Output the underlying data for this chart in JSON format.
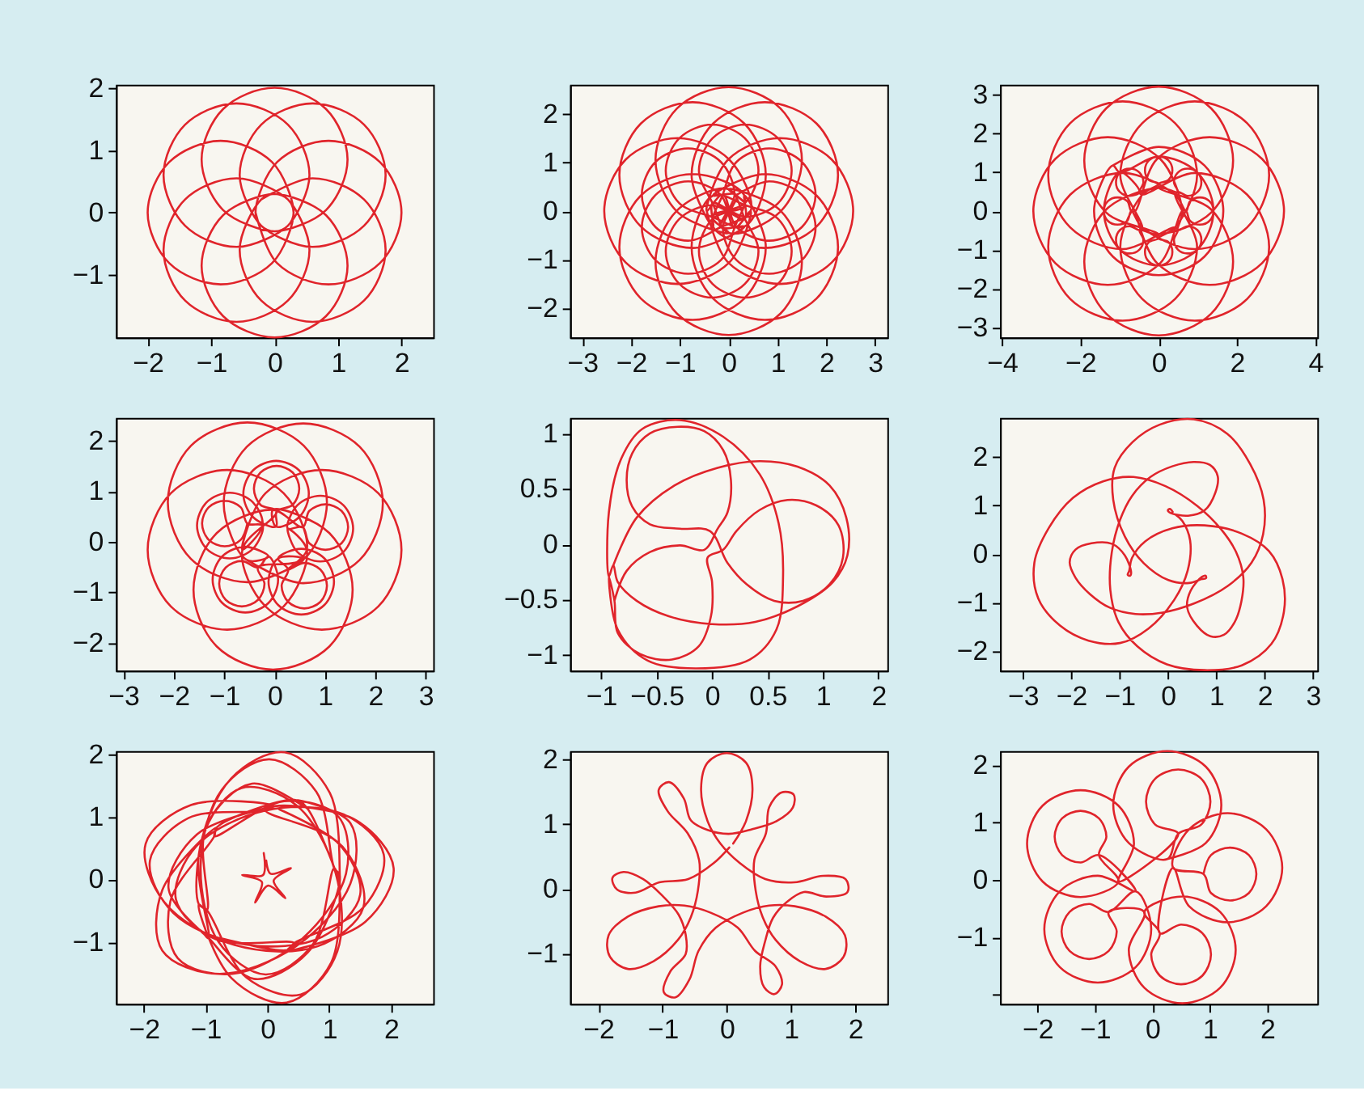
{
  "chart_data": [
    {
      "type": "line",
      "xlim": [
        -2.5,
        2.5
      ],
      "ylim": [
        -2.0,
        2.05
      ],
      "xticks": [
        -2,
        -1,
        0,
        1,
        2
      ],
      "yticks": [
        -1,
        0,
        1,
        2
      ],
      "series": [
        {
          "color": "#e0242b",
          "x": [
            -0.3,
            0.04,
            0.85,
            1.66,
            2.0,
            1.66,
            0.85,
            0.04,
            -0.3,
            -0.21,
            0.6,
            1.41,
            1.75,
            1.41,
            0.6,
            -0.21,
            -0.55,
            -0.21,
            0,
            0.81,
            1.15,
            0.81,
            0,
            -0.81,
            -1.15,
            -0.81,
            0,
            0.21,
            0.55,
            0.21,
            -0.6,
            -1.41,
            -1.75,
            -1.41,
            -0.6,
            0.21,
            0.3,
            -0.04,
            -0.85,
            -1.66,
            -2.0,
            -1.66,
            -0.85,
            -0.04,
            0.3,
            0.21,
            -0.6,
            -1.41,
            -1.75,
            -1.41,
            -0.6,
            0.21,
            0.55,
            0.21,
            0,
            -0.81,
            -1.15,
            -0.81,
            0,
            0.81,
            1.15,
            0.81,
            0,
            -0.21,
            -0.55,
            -0.21,
            0.6,
            1.41,
            1.75,
            1.41,
            0.6,
            -0.21
          ],
          "values": [
            0,
            -0.81,
            -1.15,
            -0.81,
            0,
            0.81,
            1.15,
            0.81,
            0,
            -0.21,
            -0.55,
            -0.21,
            0.6,
            1.41,
            1.75,
            1.41,
            0.6,
            -0.21,
            -0.3,
            0.04,
            0.85,
            1.66,
            2.0,
            1.66,
            0.85,
            0.04,
            -0.3,
            -0.21,
            0.6,
            1.41,
            1.75,
            1.41,
            0.6,
            -0.21,
            -0.55,
            -0.21,
            0,
            0.81,
            1.15,
            0.81,
            0,
            -0.81,
            -1.15,
            -0.81,
            0,
            0.21,
            0.55,
            0.21,
            -0.6,
            -1.41,
            -1.75,
            -1.41,
            -0.6,
            0.21,
            0.3,
            -0.04,
            -0.85,
            -1.66,
            -2.0,
            -1.66,
            -0.85,
            -0.04,
            0.3,
            0.21,
            -0.6,
            -1.41,
            -1.75,
            -1.41,
            -0.6,
            0.21,
            0.55,
            0.21
          ]
        }
      ]
    },
    {
      "type": "line",
      "xlim": [
        -3.25,
        3.25
      ],
      "ylim": [
        -2.6,
        2.6
      ],
      "xticks": [
        -3,
        -2,
        -1,
        0,
        1,
        2,
        3
      ],
      "yticks": [
        -2,
        -1,
        0,
        1,
        2
      ],
      "series": [
        {
          "color": "#e0242b",
          "x": [
            -0.45,
            -0.01,
            1.05,
            2.11,
            2.55,
            2.11,
            1.05,
            -0.01,
            -0.45,
            -0.12,
            0.16,
            0.83,
            1.5,
            1.78,
            1.5,
            0.83,
            0.16,
            -0.12,
            -0.32,
            0.74,
            1.8,
            2.24,
            1.8,
            0.74,
            -0.32,
            -0.76,
            -0.32,
            -0.33,
            0.34,
            1.01,
            1.29,
            1.01,
            0.34,
            -0.33,
            -0.61,
            -0.33,
            0,
            1.06,
            1.5,
            1.06,
            0,
            -1.06,
            -1.5,
            -1.06,
            0,
            -0.34,
            0.33,
            0.61,
            0.33,
            -0.34,
            -1.01,
            -1.29,
            -1.01,
            -0.34,
            0.32,
            0.76,
            0.32,
            -0.74,
            -1.8,
            -2.24,
            -1.8,
            -0.74,
            0.32,
            -0.16,
            0.12,
            -0.16,
            -0.83,
            -1.5,
            -1.78,
            -1.5,
            -0.83,
            -0.16,
            0.45,
            0.01,
            -1.05,
            -2.11,
            -2.55,
            -2.11,
            -1.05,
            0.01,
            0.45,
            0.12,
            -0.16,
            -0.83,
            -1.5,
            -1.78,
            -1.5,
            -0.83,
            -0.16,
            0.12,
            0.32,
            -0.74,
            -1.8,
            -2.24,
            -1.8,
            -0.74,
            0.32,
            0.76,
            0.32,
            0.33,
            -0.34,
            -1.01,
            -1.29,
            -1.01,
            -0.34,
            0.33,
            0.61,
            0.33,
            0,
            -1.06,
            -1.5,
            -1.06,
            0,
            1.06,
            1.5,
            1.06,
            0,
            0.34,
            -0.33,
            -0.61,
            -0.33,
            0.34,
            1.01,
            1.29,
            1.01,
            0.34,
            -0.32,
            -0.76,
            -0.32,
            0.74,
            1.8,
            2.24,
            1.8,
            0.74,
            -0.32,
            0.16,
            -0.12,
            0.16,
            0.83,
            1.5,
            1.78,
            1.5,
            0.83,
            0.16
          ],
          "values": [
            0,
            -1.06,
            -1.5,
            -1.06,
            0,
            1.06,
            1.5,
            1.06,
            0,
            0.34,
            -0.33,
            -0.61,
            -0.33,
            0.34,
            1.01,
            1.29,
            1.01,
            0.34,
            -0.32,
            -0.76,
            -0.32,
            0.74,
            1.8,
            2.24,
            1.8,
            0.74,
            -0.32,
            0.16,
            -0.12,
            0.16,
            0.83,
            1.5,
            1.78,
            1.5,
            0.83,
            0.16,
            -0.45,
            -0.01,
            1.05,
            2.11,
            2.55,
            2.11,
            1.05,
            -0.01,
            -0.45,
            -0.12,
            0.16,
            0.83,
            1.5,
            1.78,
            1.5,
            0.83,
            0.16,
            -0.12,
            -0.32,
            0.74,
            1.8,
            2.24,
            1.8,
            0.74,
            -0.32,
            -0.76,
            -0.32,
            -0.33,
            0.34,
            1.01,
            1.29,
            1.01,
            0.34,
            -0.33,
            -0.61,
            -0.33,
            0,
            1.06,
            1.5,
            1.06,
            0,
            -1.06,
            -1.5,
            -1.06,
            0,
            -0.34,
            0.33,
            0.61,
            0.33,
            -0.34,
            -1.01,
            -1.29,
            -1.01,
            -0.34,
            0.32,
            0.76,
            0.32,
            -0.74,
            -1.8,
            -2.24,
            -1.8,
            -0.74,
            0.32,
            -0.16,
            0.12,
            -0.16,
            -0.83,
            -1.5,
            -1.78,
            -1.5,
            -0.83,
            -0.16,
            0.45,
            0.01,
            -1.05,
            -2.11,
            -2.55,
            -2.11,
            -1.05,
            0.01,
            0.45,
            0.12,
            -0.16,
            -0.83,
            -1.5,
            -1.78,
            -1.5,
            -0.83,
            -0.16,
            0.12,
            0.32,
            -0.74,
            -1.8,
            -2.24,
            -1.8,
            -0.74,
            0.32,
            0.76,
            0.32,
            0.33,
            -0.34,
            -1.01,
            -1.29,
            -1.01,
            -0.34,
            0.33,
            0.61,
            0.33
          ]
        }
      ]
    },
    {
      "type": "line",
      "xlim": [
        -4.05,
        4.05
      ],
      "ylim": [
        -3.25,
        3.25
      ],
      "xticks": [
        -4,
        -2,
        0,
        2,
        4
      ],
      "yticks": [
        -3,
        -2,
        -1,
        0,
        1,
        2,
        3
      ],
      "series": [
        {
          "color": "#e0242b",
          "x": [
            -0.6,
            -0.04,
            1.3,
            2.64,
            3.2,
            2.64,
            1.3,
            -0.04,
            -0.6,
            -0.7,
            -0.8,
            -1.05,
            -1.3,
            -1.4,
            -1.3,
            -1.05,
            -0.8,
            -0.7,
            -0.42,
            0.92,
            2.26,
            2.82,
            2.26,
            0.92,
            -0.42,
            -0.98,
            -0.42,
            -0.49,
            -0.74,
            -0.99,
            -1.09,
            -0.99,
            -0.74,
            -0.49,
            -0.39,
            -0.49,
            0,
            1.34,
            1.9,
            1.34,
            0,
            -1.34,
            -1.9,
            -1.34,
            0,
            0,
            -0.25,
            -0.35,
            -0.25,
            0,
            0.25,
            0.35,
            0.25,
            0,
            0.42,
            0.98,
            0.42,
            -0.92,
            -2.26,
            -2.82,
            -2.26,
            -0.92,
            0.42,
            0.49,
            0.39,
            0.49,
            0.74,
            0.99,
            1.09,
            0.99,
            0.74,
            0.49,
            0.6,
            0.04,
            -1.3,
            -2.64,
            -3.2,
            -2.64,
            -1.3,
            0.04,
            0.6,
            0.7,
            0.8,
            1.05,
            1.3,
            1.4,
            1.3,
            1.05,
            0.8,
            0.7,
            0.42,
            -0.92,
            -2.26,
            -2.82,
            -2.26,
            -0.92,
            0.42,
            0.98,
            0.42,
            0.49,
            0.74,
            0.99,
            1.09,
            0.99,
            0.74,
            0.49,
            0.39,
            0.49,
            0,
            -1.34,
            -1.9,
            -1.34,
            0,
            1.34,
            1.9,
            1.34,
            0,
            0,
            0.25,
            0.35,
            0.25,
            0,
            -0.25,
            -0.35,
            -0.25,
            0,
            -0.42,
            -0.98,
            -0.42,
            0.92,
            2.26,
            2.82,
            2.26,
            0.92,
            -0.42,
            -0.49,
            -0.39,
            -0.49,
            -0.74,
            -0.99,
            -1.09,
            -0.99,
            -0.74,
            -0.49,
            -0.99,
            -1.4,
            -0.99,
            0,
            0.99,
            1.4,
            0.99,
            0,
            -0.99,
            -1.17,
            -1.65,
            -1.17,
            0,
            1.17,
            1.65,
            1.17,
            0,
            -1.17
          ],
          "values": [
            0,
            -1.34,
            -1.9,
            -1.34,
            0,
            1.34,
            1.9,
            1.34,
            0,
            0,
            0.25,
            0.35,
            0.25,
            0,
            -0.25,
            -0.35,
            -0.25,
            0,
            -0.42,
            -0.98,
            -0.42,
            0.92,
            2.26,
            2.82,
            2.26,
            0.92,
            -0.42,
            -0.49,
            -0.39,
            -0.49,
            -0.74,
            -0.99,
            -1.09,
            -0.99,
            -0.74,
            -0.49,
            -0.6,
            -0.04,
            1.3,
            2.64,
            3.2,
            2.64,
            1.3,
            -0.04,
            -0.6,
            -0.7,
            -0.8,
            -1.05,
            -1.3,
            -1.4,
            -1.3,
            -1.05,
            -0.8,
            -0.7,
            -0.42,
            0.92,
            2.26,
            2.82,
            2.26,
            0.92,
            -0.42,
            -0.98,
            -0.42,
            -0.49,
            -0.74,
            -0.99,
            -1.09,
            -0.99,
            -0.74,
            -0.49,
            -0.39,
            -0.49,
            0,
            1.34,
            1.9,
            1.34,
            0,
            -1.34,
            -1.9,
            -1.34,
            0,
            0,
            -0.25,
            -0.35,
            -0.25,
            0,
            0.25,
            0.35,
            0.25,
            0,
            0.42,
            0.98,
            0.42,
            -0.92,
            -2.26,
            -2.82,
            -2.26,
            -0.92,
            0.42,
            0.49,
            0.39,
            0.49,
            0.74,
            0.99,
            1.09,
            0.99,
            0.74,
            0.49,
            0.6,
            0.04,
            -1.3,
            -2.64,
            -3.2,
            -2.64,
            -1.3,
            0.04,
            0.6,
            0.7,
            0.8,
            1.05,
            1.3,
            1.4,
            1.3,
            1.05,
            0.8,
            0.7,
            0.42,
            -0.92,
            -2.26,
            -2.82,
            -2.26,
            -0.92,
            0.42,
            0.98,
            0.42,
            0.49,
            0.74,
            0.99,
            1.09,
            0.99,
            0.74,
            0.49,
            0.39,
            0.49,
            0.99,
            0,
            -0.99,
            -1.4,
            -0.99,
            0,
            0.99,
            1.4,
            0.99,
            1.17,
            0,
            -1.17,
            -1.65,
            -1.17,
            0,
            1.17,
            1.65,
            1.17
          ]
        }
      ]
    },
    {
      "type": "line",
      "xlim": [
        -3.15,
        3.15
      ],
      "ylim": [
        -2.55,
        2.45
      ],
      "xticks": [
        -3,
        -2,
        -1,
        0,
        1,
        2,
        3
      ],
      "yticks": [
        -2,
        -1,
        0,
        1,
        2
      ],
      "series": [
        {
          "color": "#e0242b",
          "x": [
            -0.55,
            0.57,
            1.69,
            2.15,
            1.69,
            0.57,
            -0.55,
            -1.01,
            -0.55,
            -0.12,
            -0.58,
            -1.04,
            -1.23,
            -1.04,
            -0.58,
            -0.12,
            0.07,
            -0.12,
            -0.33,
            -0.65,
            -0.97,
            -1.1,
            -0.97,
            -0.65,
            -0.33,
            -0.2,
            -0.33,
            0.58,
            1.04,
            0.58,
            -0.54,
            -1.66,
            -2.12,
            -1.66,
            -0.54,
            0.58,
            0.07,
            -0.12,
            0.07,
            0.53,
            0.99,
            1.18,
            0.99,
            0.53,
            0.07,
            0.27,
            0.14,
            0.27,
            0.59,
            0.91,
            1.04,
            0.91,
            0.59,
            0.27,
            0.64,
            0.18,
            -0.94,
            -2.06,
            -2.52,
            -2.06,
            -0.94,
            0.18,
            0.64,
            0.26,
            0.45,
            0.91,
            1.37,
            1.56,
            1.37,
            0.91,
            0.45,
            0.26,
            0.56,
            0.69,
            1.01,
            1.33,
            1.46,
            1.33,
            1.01,
            0.69,
            0.56,
            -0.03,
            -1.15,
            -1.61,
            -1.15,
            -0.03,
            1.09,
            1.55,
            1.09,
            -0.03,
            0.03,
            0.49,
            0.68,
            0.49,
            0.03,
            -0.43,
            -0.62,
            -0.43,
            0.03,
            0.04,
            0.36,
            0.49,
            0.36,
            0.04,
            -0.28,
            -0.41,
            -0.28,
            0.04,
            -0.64,
            -0.18,
            0.94,
            2.06,
            2.52,
            2.06,
            0.94,
            -0.18,
            -0.64,
            -0.24,
            -0.43,
            -0.89,
            -1.35,
            -1.54,
            -1.35,
            -0.89,
            -0.43,
            -0.24,
            -0.54,
            -0.67,
            -0.99,
            -1.31,
            -1.44,
            -1.31,
            -0.99,
            -0.67,
            -0.54
          ],
          "values": [
            -0.36,
            -0.82,
            -0.36,
            0.76,
            1.88,
            2.34,
            1.88,
            0.76,
            -0.36,
            -0.29,
            -0.1,
            -0.29,
            -0.75,
            -1.21,
            -1.4,
            -1.21,
            -0.75,
            -0.29,
            -0.51,
            -0.38,
            -0.51,
            -0.83,
            -1.15,
            -1.28,
            -1.15,
            -0.83,
            -0.51,
            -0.34,
            0.78,
            1.9,
            2.36,
            1.9,
            0.78,
            -0.34,
            -0.8,
            -0.34,
            -0.33,
            -0.79,
            -1.25,
            -1.44,
            -1.25,
            -0.79,
            -0.33,
            -0.14,
            -0.33,
            -0.55,
            -0.87,
            -1.19,
            -1.32,
            -1.19,
            -0.87,
            -0.55,
            -0.42,
            -0.55,
            -0.16,
            0.96,
            1.42,
            0.96,
            -0.16,
            -1.28,
            -1.74,
            -1.28,
            -0.16,
            0.26,
            -0.2,
            -0.39,
            -0.2,
            0.26,
            0.72,
            0.91,
            0.72,
            0.26,
            0.29,
            -0.03,
            -0.16,
            -0.03,
            0.29,
            0.61,
            0.74,
            0.61,
            0.29,
            0.63,
            0.17,
            -0.95,
            -2.07,
            -2.53,
            -2.07,
            -0.95,
            0.17,
            0.63,
            0.3,
            0.49,
            0.95,
            1.41,
            1.6,
            1.41,
            0.95,
            0.49,
            0.3,
            0.6,
            0.73,
            1.05,
            1.37,
            1.5,
            1.37,
            1.05,
            0.73,
            0.6,
            -0.16,
            -1.28,
            -1.74,
            -1.28,
            -0.16,
            0.96,
            1.42,
            0.96,
            -0.16,
            0.32,
            0.78,
            0.97,
            0.78,
            0.32,
            -0.14,
            -0.33,
            -0.14,
            0.32,
            0.36,
            0.68,
            0.81,
            0.68,
            0.36,
            0.04,
            -0.09,
            0.04,
            0.36
          ]
        }
      ]
    },
    {
      "type": "line",
      "xlim": [
        -1.28,
        1.58
      ],
      "ylim": [
        -1.14,
        1.14
      ],
      "xticks": [
        -1,
        -0.5,
        0,
        0.5,
        1,
        {
          "value": 1.5,
          "label": "2"
        }
      ],
      "yticks": [
        -1,
        -0.5,
        0,
        0.5,
        1
      ],
      "series": [
        {
          "color": "#e0242b",
          "x": [
            -0.89,
            -0.68,
            -0.34,
            0.05,
            0.43,
            0.77,
            1.06,
            1.21,
            1.22,
            1.09,
            0.77,
            0.39,
            0,
            -0.39,
            -0.68,
            -0.85,
            -0.89,
            -0.93,
            -0.93,
            -0.82,
            -0.63,
            -0.29,
            0.1,
            0.43,
            0.6,
            0.64,
            0.58,
            0.34,
            -0.14,
            -0.58,
            -0.85,
            -0.93,
            -0.88,
            -0.85,
            -0.65,
            -0.36,
            -0.12,
            -0.01,
            0,
            -0.04,
            0.1,
            0.22,
            0.43,
            0.68,
            0.94,
            1.14,
            1.18,
            1.06,
            0.82,
            0.56,
            0.31,
            0.14,
            -0.02,
            -0.29,
            -0.56,
            -0.72,
            -0.77,
            -0.72,
            -0.56,
            -0.31,
            -0.07,
            0.1,
            0.17,
            0.14,
            0.05,
            -0.07,
            -0.29,
            -0.56,
            -0.77,
            -0.88
          ],
          "values": [
            -0.19,
            0.24,
            0.53,
            0.69,
            0.75,
            0.7,
            0.53,
            0.24,
            -0.1,
            -0.34,
            -0.56,
            -0.7,
            -0.72,
            -0.65,
            -0.51,
            -0.34,
            -0.19,
            -0.29,
            0.29,
            0.77,
            1.04,
            1.12,
            0.97,
            0.63,
            0.19,
            -0.29,
            -0.77,
            -1.04,
            -1.12,
            -1.05,
            -0.77,
            -0.29,
            -0.51,
            -0.8,
            -0.99,
            -1.04,
            -0.92,
            -0.65,
            -0.34,
            -0.12,
            -0.05,
            0.12,
            0.31,
            0.4,
            0.35,
            0.17,
            -0.12,
            -0.36,
            -0.51,
            -0.51,
            -0.36,
            -0.17,
            0.12,
            0.14,
            0.18,
            0.34,
            0.58,
            0.82,
            1.0,
            1.06,
            1.02,
            0.85,
            0.58,
            0.29,
            0.14,
            -0.05,
            -0.01,
            -0.07,
            -0.24,
            -0.51
          ]
        }
      ]
    },
    {
      "type": "line",
      "xlim": [
        -3.47,
        3.09
      ],
      "ylim": [
        -2.41,
        2.81
      ],
      "xticks": [
        -3,
        -2,
        -1,
        0,
        1,
        2,
        3
      ],
      "yticks": [
        -2,
        -1,
        0,
        1,
        2
      ],
      "series": [
        {
          "color": "#e0242b",
          "x": [
            0.1,
            0.04,
            0.0,
            0.05,
            0.42,
            0.76,
            0.98,
            1.03,
            0.87,
            0.53,
            0.09,
            -0.36,
            -0.74,
            -0.99,
            -1.16,
            -1.19,
            -1.02,
            -0.63,
            -0.02,
            0.76,
            1.53,
            2.14,
            2.4,
            2.37,
            2.09,
            1.53,
            0.76,
            0.09,
            -0.47,
            -0.74,
            -0.8,
            -0.83,
            -0.78,
            -0.76,
            -0.89,
            -1.16,
            -1.58,
            -1.91,
            -2.03,
            -1.91,
            -1.61,
            -1.2,
            -0.67,
            -0.11,
            0.55,
            1.24,
            1.73,
            1.97,
            1.98,
            1.7,
            1.23,
            0.54,
            -0.17,
            -0.73,
            -1.1,
            -1.13,
            -0.89,
            -0.5,
            0.01,
            0.44,
            0.7,
            0.79,
            0.78,
            0.71,
            0.47,
            0.4,
            0.6,
            0.88,
            1.16,
            1.38,
            1.52,
            1.56,
            1.41,
            1.1,
            0.61,
            -0.05,
            -0.71,
            -1.34,
            -1.96,
            -2.46,
            -2.76,
            -2.68,
            -2.23,
            -1.64,
            -0.99,
            -0.4,
            0.13,
            0.41,
            0.46,
            0.3,
            0.16
          ],
          "values": [
            0.87,
            0.93,
            0.9,
            0.85,
            0.79,
            0.9,
            1.26,
            1.61,
            1.84,
            1.9,
            1.81,
            1.59,
            1.2,
            0.7,
            0.03,
            -0.74,
            -1.41,
            -1.91,
            -2.28,
            -2.4,
            -2.3,
            -1.86,
            -1.19,
            -0.52,
            0.06,
            0.42,
            0.59,
            0.53,
            0.26,
            -0.08,
            -0.35,
            -0.43,
            -0.45,
            -0.38,
            -0.03,
            0.21,
            0.22,
            0.09,
            -0.17,
            -0.49,
            -0.83,
            -1.11,
            -1.24,
            -1.21,
            -1.02,
            -0.66,
            -0.18,
            0.41,
            1.12,
            1.86,
            2.48,
            2.78,
            2.67,
            2.31,
            1.78,
            1.12,
            0.36,
            -0.19,
            -0.54,
            -0.6,
            -0.52,
            -0.5,
            -0.45,
            -0.47,
            -0.76,
            -1.11,
            -1.48,
            -1.7,
            -1.67,
            -1.41,
            -0.98,
            -0.48,
            0.04,
            0.51,
            0.99,
            1.4,
            1.59,
            1.5,
            1.16,
            0.54,
            -0.18,
            -0.92,
            -1.48,
            -1.79,
            -1.84,
            -1.54,
            -0.95,
            -0.34,
            0.28,
            0.68,
            0.81
          ]
        }
      ]
    },
    {
      "type": "line",
      "xlim": [
        -2.45,
        2.68
      ],
      "ylim": [
        -1.99,
        2.05
      ],
      "xticks": [
        -2,
        -1,
        0,
        1,
        2
      ],
      "yticks": [
        -1,
        0,
        1,
        2
      ],
      "series": [
        {
          "color": "#e0242b",
          "x": [
            0.12,
            -1.14,
            -1.6,
            -1.0,
            -0.95,
            -0.22,
            0.65,
            1.17,
            1.08,
            0.79,
            0.03,
            -0.74,
            -1.08,
            -0.79,
            -0.03,
            0.74,
            1.08,
            1.17,
            0.64,
            0.44,
            -0.82,
            -0.86,
            -1.57,
            -1.45,
            -0.57,
            0.56,
            1.27,
            1.15,
            0.27,
            -0.86,
            -0.82,
            -1.7,
            -1.7,
            -0.8,
            0.46,
            1.34,
            1.34,
            0.44,
            0.64,
            -0.25,
            -0.97,
            -1.11,
            -0.98,
            -0.34,
            0.54,
            1.13,
            1.1,
            0.46,
            -0.42,
            -1.01,
            -0.98,
            -1.11,
            -0.58,
            0.31,
            1.03,
            1.17,
            1.17,
            1.01,
            0.28,
            -0.59,
            -1.11,
            -0.95,
            -1.0,
            0.32,
            0.43,
            1.55,
            1.88,
            1.23,
            -0.03,
            -1.15,
            -1.48,
            -0.83,
            0.43,
            0.32,
            1.58,
            2.04,
            1.44,
            0.11,
            -0.03,
            -1.28,
            -1.9,
            -1.52,
            -0.37,
            0.88,
            1.5,
            1.12,
            -0.03,
            0.11,
            -1.23,
            -1.97,
            -1.67,
            -0.53,
            0.81,
            1.55,
            1.25,
            0.19
          ],
          "values": [
            1.17,
            0.72,
            -0.14,
            -0.9,
            -0.94,
            -1.59,
            -1.17,
            0.06,
            0.18,
            1.4,
            1.92,
            1.43,
            0.22,
            -1.0,
            -1.52,
            -1.03,
            0.18,
            -0.04,
            1.14,
            1.27,
            0.83,
            0.69,
            -0.35,
            -1.26,
            -1.51,
            -0.95,
            0.09,
            1.0,
            1.25,
            0.69,
            0.83,
            -0.17,
            -1.14,
            -1.51,
            -1.07,
            -0.07,
            0.9,
            1.27,
            1.14,
            1.53,
            0.89,
            -0.4,
            -0.49,
            -1.57,
            -1.84,
            -1.15,
            0.11,
            1.19,
            1.46,
            0.77,
            -0.49,
            -0.4,
            -1.58,
            -1.97,
            -1.33,
            -0.04,
            0.06,
            1.38,
            2.03,
            1.61,
            0.38,
            -0.94,
            -0.9,
            -1.13,
            -1.02,
            -0.45,
            0.4,
            1.04,
            1.1,
            0.53,
            -0.32,
            -0.96,
            -1.02,
            -1.13,
            -0.68,
            0.18,
            0.94,
            1.17,
            1.1,
            0.98,
            0.3,
            -0.54,
            -1.04,
            -0.92,
            -0.24,
            0.6,
            1.1,
            1.17,
            1.19,
            0.57,
            -0.36,
            -1.05,
            -1.07,
            -0.45,
            0.48,
            1.12
          ]
        },
        {
          "color": "#e0242b",
          "x": [
            -0.06,
            -0.07,
            -0.41,
            -0.09,
            -0.2,
            0.01,
            0.29,
            0.1,
            0.38,
            0.05,
            -0.02
          ],
          "values": [
            0.42,
            0.07,
            0.07,
            -0.04,
            -0.37,
            -0.1,
            -0.3,
            -0.02,
            0.18,
            0.09,
            0.3
          ]
        }
      ]
    },
    {
      "type": "line",
      "xlim": [
        -2.44,
        2.5
      ],
      "ylim": [
        -1.78,
        2.13
      ],
      "xticks": [
        -2,
        -1,
        0,
        1,
        2
      ],
      "yticks": [
        -1,
        0,
        1,
        2
      ],
      "series": [
        {
          "color": "#e0242b",
          "x": [
            0.1,
            0.3,
            0.4,
            0.3,
            0,
            -0.3,
            -0.4,
            -0.3,
            -0.1,
            0.2,
            0.6,
            1.05,
            1.5,
            1.85,
            1.88,
            1.55,
            1.2,
            0.94,
            0.72,
            0.6,
            0.52,
            0.58,
            0.74,
            0.86,
            0.76,
            0.44,
            0.17,
            -0.25,
            -0.66,
            -1.06,
            -1.54,
            -1.84,
            -1.82,
            -1.54,
            -1.14,
            -0.76,
            -0.56,
            -0.45,
            -0.43,
            -0.61,
            -0.92,
            -1.06,
            -0.9,
            -0.67,
            -0.56,
            -0.3,
            0.03,
            0.39,
            0.78,
            1.03,
            1.04,
            0.85,
            0.66,
            0.61,
            0.43,
            0.45,
            0.56,
            0.76,
            1.14,
            1.54,
            1.82,
            1.84,
            1.54,
            1.06,
            0.66,
            0.25,
            -0.17,
            -0.44,
            -0.58,
            -0.8,
            -0.98,
            -0.88,
            -0.64,
            -0.64,
            -0.75,
            -0.99,
            -1.3,
            -1.61,
            -1.78,
            -1.71,
            -1.42,
            -1.05,
            -0.6,
            -0.2,
            0.04
          ],
          "values": [
            0.7,
            1.05,
            1.55,
            1.95,
            2.1,
            1.95,
            1.55,
            1.05,
            0.7,
            0.4,
            0.15,
            0.1,
            0.2,
            0.15,
            -0.05,
            -0.12,
            -0.05,
            -0.2,
            -0.45,
            -0.8,
            -1.2,
            -1.52,
            -1.63,
            -1.48,
            -1.2,
            -0.96,
            -0.6,
            -0.37,
            -0.26,
            -0.27,
            -0.43,
            -0.72,
            -1.05,
            -1.24,
            -1.12,
            -0.79,
            -0.44,
            -0.03,
            0.44,
            0.86,
            1.2,
            1.53,
            1.65,
            1.4,
            1.06,
            0.91,
            0.85,
            0.92,
            1.05,
            1.26,
            1.46,
            1.49,
            1.26,
            0.86,
            0.45,
            -0.03,
            -0.44,
            -0.79,
            -1.12,
            -1.24,
            -1.05,
            -0.72,
            -0.43,
            -0.27,
            -0.26,
            -0.37,
            -0.6,
            -0.96,
            -1.4,
            -1.68,
            -1.6,
            -1.28,
            -1.01,
            -0.71,
            -0.4,
            -0.12,
            0.15,
            0.26,
            0.17,
            -0.01,
            -0.06,
            0.1,
            0.15,
            0.4,
            0.64
          ]
        }
      ]
    },
    {
      "type": "line",
      "xlim": [
        -2.65,
        2.87
      ],
      "ylim": [
        -2.16,
        2.24
      ],
      "xticks": [
        -2,
        -1,
        0,
        1,
        2
      ],
      "yticks": [
        {
          "value": -2,
          "label": null
        },
        -1,
        0,
        1,
        2
      ],
      "series": [
        {
          "color": "#e0242b",
          "x": [
            0.26,
            0.93,
            1.2,
            0.93,
            0.26,
            -0.41,
            -0.68,
            -0.41,
            0.26,
            0.45,
            0.85,
            1.01,
            0.85,
            0.45,
            0.05,
            -0.11,
            0.05,
            0.45,
            -0.59,
            -0.32,
            -0.59,
            -1.25,
            -1.91,
            -2.18,
            -1.91,
            -1.25,
            -0.59,
            -0.93,
            -0.8,
            -0.93,
            -1.25,
            -1.57,
            -1.7,
            -1.57,
            -1.25,
            -0.93,
            -0.29,
            -0.95,
            -1.61,
            -1.88,
            -1.61,
            -0.95,
            -0.29,
            -0.02,
            -0.29,
            -0.76,
            -1.1,
            -1.44,
            -1.58,
            -1.44,
            -1.1,
            -0.76,
            -0.62,
            -0.76,
            -0.14,
            -0.41,
            -0.14,
            0.52,
            1.18,
            1.45,
            1.18,
            0.52,
            -0.14,
            0.13,
            -0.02,
            0.13,
            0.5,
            0.87,
            1.02,
            0.87,
            0.5,
            0.13,
            0.36,
            0.64,
            1.31,
            1.98,
            2.26,
            1.98,
            1.31,
            0.64,
            0.36,
            0.89,
            1.02,
            1.35,
            1.68,
            1.81,
            1.68,
            1.35,
            1.02,
            0.89
          ],
          "values": [
            0.36,
            0.64,
            1.3,
            1.97,
            2.24,
            1.97,
            1.3,
            0.64,
            0.36,
            0.8,
            0.96,
            1.36,
            1.76,
            1.92,
            1.76,
            1.36,
            0.96,
            0.8,
            -0.03,
            0.63,
            1.29,
            1.56,
            1.29,
            0.63,
            -0.03,
            -0.3,
            -0.03,
            0.43,
            0.75,
            1.07,
            1.2,
            1.07,
            0.75,
            0.43,
            0.3,
            0.43,
            -0.2,
            0.07,
            -0.2,
            -0.86,
            -1.52,
            -1.79,
            -1.52,
            -0.86,
            -0.2,
            -0.56,
            -0.42,
            -0.56,
            -0.9,
            -1.24,
            -1.38,
            -1.24,
            -0.9,
            -0.56,
            -0.56,
            -1.22,
            -1.88,
            -2.15,
            -1.88,
            -1.22,
            -0.56,
            -0.29,
            -0.56,
            -0.93,
            -1.3,
            -1.67,
            -1.82,
            -1.67,
            -1.3,
            -0.93,
            -0.78,
            -0.93,
            0.21,
            -0.46,
            -0.74,
            -0.46,
            0.21,
            0.88,
            1.16,
            0.88,
            0.21,
            0.1,
            -0.23,
            -0.36,
            -0.23,
            0.1,
            0.43,
            0.56,
            0.43,
            0.1
          ]
        }
      ]
    }
  ]
}
